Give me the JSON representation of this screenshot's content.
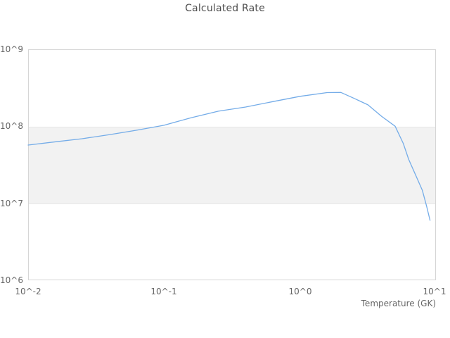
{
  "chart_data": {
    "type": "line",
    "title": "Calculated Rate",
    "xlabel": "Temperature (GK)",
    "ylabel": "",
    "x_scale": "log",
    "y_scale": "log",
    "xlim": [
      0.01,
      10
    ],
    "ylim": [
      1000000,
      1000000000
    ],
    "x_ticks": [
      "10^-2",
      "10^-1",
      "10^0",
      "10^1"
    ],
    "y_ticks": [
      "10^9",
      "10^8",
      "10^7",
      "10^6"
    ],
    "grid": "band",
    "grid_band": {
      "from": 10000000,
      "to": 100000000,
      "color": "#f2f2f2"
    },
    "line_color": "#74ace8",
    "legend": "none",
    "series": [
      {
        "name": "Calculated Rate",
        "x": [
          0.01,
          0.016,
          0.025,
          0.04,
          0.063,
          0.1,
          0.158,
          0.251,
          0.398,
          0.631,
          1.0,
          1.58,
          2.0,
          2.51,
          3.16,
          3.98,
          5.01,
          5.75,
          6.31,
          7.08,
          7.94,
          8.55,
          9.05
        ],
        "y": [
          57000000,
          63000000,
          69000000,
          78000000,
          89000000,
          103000000,
          129000000,
          157000000,
          178000000,
          209000000,
          245000000,
          274000000,
          275000000,
          230000000,
          190000000,
          135000000,
          100000000,
          60000000,
          37000000,
          23400000,
          14800000,
          9100000,
          6000000
        ]
      }
    ]
  },
  "colors": {
    "background": "#ffffff",
    "band": "#f2f2f2",
    "band_border": "#e7e7e7",
    "plot_border": "#d6d6d6",
    "title_text": "#4d4d4d",
    "tick_text": "#666666",
    "line": "#74ace8"
  }
}
